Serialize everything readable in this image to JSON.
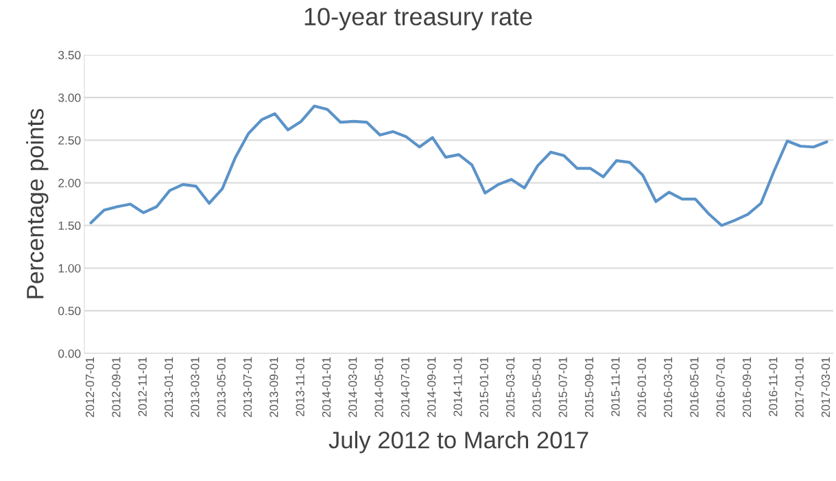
{
  "chart_data": {
    "type": "line",
    "title": "10-year treasury rate",
    "xlabel": "July 2012 to March 2017",
    "ylabel": "Percentage points",
    "categories": [
      "2012-07-01",
      null,
      "2012-09-01",
      null,
      "2012-11-01",
      null,
      "2013-01-01",
      null,
      "2013-03-01",
      null,
      "2013-05-01",
      null,
      "2013-07-01",
      null,
      "2013-09-01",
      null,
      "2013-11-01",
      null,
      "2014-01-01",
      null,
      "2014-03-01",
      null,
      "2014-05-01",
      null,
      "2014-07-01",
      null,
      "2014-09-01",
      null,
      "2014-11-01",
      null,
      "2015-01-01",
      null,
      "2015-03-01",
      null,
      "2015-05-01",
      null,
      "2015-07-01",
      null,
      "2015-09-01",
      null,
      "2015-11-01",
      null,
      "2016-01-01",
      null,
      "2016-03-01",
      null,
      "2016-05-01",
      null,
      "2016-07-01",
      null,
      "2016-09-01",
      null,
      "2016-11-01",
      null,
      "2017-01-01",
      null,
      "2017-03-01"
    ],
    "series": [
      {
        "color": "#5b93c8",
        "values": [
          1.53,
          1.68,
          1.72,
          1.75,
          1.65,
          1.72,
          1.91,
          1.98,
          1.96,
          1.76,
          1.93,
          2.3,
          2.58,
          2.74,
          2.81,
          2.62,
          2.72,
          2.9,
          2.86,
          2.71,
          2.72,
          2.71,
          2.56,
          2.6,
          2.54,
          2.42,
          2.53,
          2.3,
          2.33,
          2.21,
          1.88,
          1.98,
          2.04,
          1.94,
          2.2,
          2.36,
          2.32,
          2.17,
          2.17,
          2.07,
          2.26,
          2.24,
          2.09,
          1.78,
          1.89,
          1.81,
          1.81,
          1.64,
          1.5,
          1.56,
          1.63,
          1.76,
          2.14,
          2.49,
          2.43,
          2.42,
          2.48
        ]
      }
    ],
    "ylim": [
      0,
      3.5
    ],
    "yticks": [
      {
        "value": 0,
        "label": "0.00"
      },
      {
        "value": 0.5,
        "label": "0.50"
      },
      {
        "value": 1,
        "label": "1.00"
      },
      {
        "value": 1.5,
        "label": "1.50"
      },
      {
        "value": 2,
        "label": "2.00"
      },
      {
        "value": 2.5,
        "label": "2.50"
      },
      {
        "value": 3,
        "label": "3.00"
      },
      {
        "value": 3.5,
        "label": "3.50"
      }
    ],
    "grid": "y",
    "line_style": "solid",
    "marker": "none"
  }
}
